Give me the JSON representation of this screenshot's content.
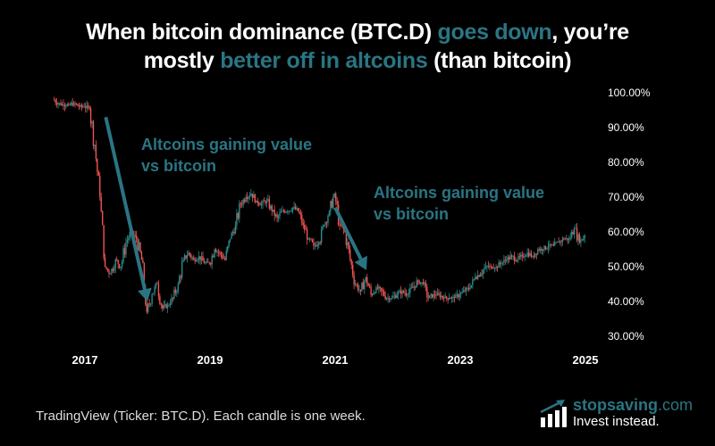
{
  "title": {
    "part1": "When bitcoin dominance (BTC.D) ",
    "highlight1": "goes down",
    "part2": ", you’re",
    "part3": "mostly ",
    "highlight2": "better off in altcoins",
    "part4": " (than bitcoin)"
  },
  "footer": {
    "source": "TradingView (Ticker: BTC.D). Each candle is one week.",
    "logo_brand": "stopsaving",
    "logo_domain": ".com",
    "logo_tagline": "Invest instead."
  },
  "colors": {
    "accent": "#2a7583",
    "up": "#2a8c8c",
    "down": "#ef5350"
  },
  "chart_data": {
    "type": "candlestick",
    "ylim": [
      30,
      100
    ],
    "yticks": [
      "100.00%",
      "90.00%",
      "80.00%",
      "70.00%",
      "60.00%",
      "50.00%",
      "40.00%",
      "30.00%"
    ],
    "ytick_values": [
      100,
      90,
      80,
      70,
      60,
      50,
      40,
      30
    ],
    "xticks": [
      "2017",
      "2019",
      "2021",
      "2023",
      "2025"
    ],
    "xtick_values": [
      2017,
      2019,
      2021,
      2023,
      2025
    ],
    "y_axis_position": "right",
    "grid": false,
    "annotations": [
      {
        "line1": "Altcoins gaining value",
        "line2": "vs bitcoin",
        "arrow_from": [
          "2017-05",
          93
        ],
        "arrow_to": [
          "2018-01",
          40
        ]
      },
      {
        "line1": "Altcoins gaining value",
        "line2": "vs bitcoin",
        "arrow_from": [
          "2021-01",
          67
        ],
        "arrow_to": [
          "2021-07",
          49
        ]
      }
    ],
    "start": "2016-07",
    "monthly_close": [
      98,
      97,
      96.5,
      96.5,
      97,
      96,
      96,
      95.5,
      85,
      70,
      50,
      48,
      52,
      50,
      57,
      60,
      58,
      52,
      37,
      42,
      45,
      38,
      39,
      41,
      45,
      52,
      54,
      52,
      53,
      51,
      51,
      55,
      54,
      52,
      58,
      62,
      68,
      70,
      71,
      69,
      68,
      69,
      66,
      64,
      66,
      66,
      67,
      66,
      62,
      58,
      56,
      57,
      62,
      66,
      71,
      62,
      60,
      52,
      45,
      43,
      47,
      42,
      44,
      43,
      41,
      41,
      42,
      43,
      42,
      44,
      46,
      45,
      41,
      42,
      42,
      41,
      41,
      41,
      42,
      43,
      44,
      47,
      48,
      50,
      50,
      50,
      51,
      52,
      53,
      52,
      53,
      54,
      53,
      55,
      55,
      56,
      56,
      57,
      58,
      58,
      61,
      57,
      59
    ]
  }
}
